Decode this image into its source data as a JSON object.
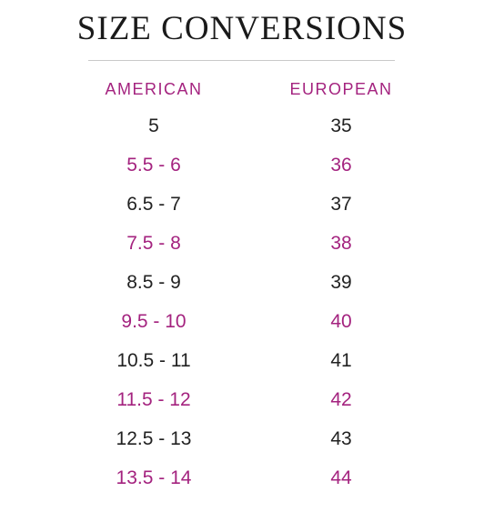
{
  "title": "SIZE CONVERSIONS",
  "colors": {
    "accent": "#a4237f",
    "text": "#222222"
  },
  "headers": {
    "american": "AMERICAN",
    "european": "EUROPEAN"
  },
  "rows": [
    {
      "american": "5",
      "european": "35",
      "highlight": false
    },
    {
      "american": "5.5 - 6",
      "european": "36",
      "highlight": true
    },
    {
      "american": "6.5 - 7",
      "european": "37",
      "highlight": false
    },
    {
      "american": "7.5 - 8",
      "european": "38",
      "highlight": true
    },
    {
      "american": "8.5 - 9",
      "european": "39",
      "highlight": false
    },
    {
      "american": "9.5 - 10",
      "european": "40",
      "highlight": true
    },
    {
      "american": "10.5 - 11",
      "european": "41",
      "highlight": false
    },
    {
      "american": "11.5 - 12",
      "european": "42",
      "highlight": true
    },
    {
      "american": "12.5 - 13",
      "european": "43",
      "highlight": false
    },
    {
      "american": "13.5 - 14",
      "european": "44",
      "highlight": true
    }
  ]
}
